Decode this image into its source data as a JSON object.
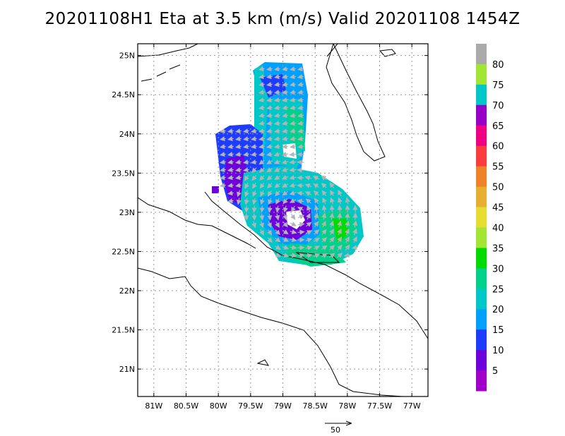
{
  "title": "20201108H1 Eta at 3.5 km (m/s) Valid 20201108 1454Z",
  "map": {
    "lon_range": [
      -81.25,
      -76.75
    ],
    "lat_range": [
      20.65,
      25.15
    ],
    "lon_ticks": [
      {
        "value": -81.0,
        "label": "81W"
      },
      {
        "value": -80.5,
        "label": "80.5W"
      },
      {
        "value": -80.0,
        "label": "80W"
      },
      {
        "value": -79.5,
        "label": "79.5W"
      },
      {
        "value": -79.0,
        "label": "79W"
      },
      {
        "value": -78.5,
        "label": "78.5W"
      },
      {
        "value": -78.0,
        "label": "78W"
      },
      {
        "value": -77.5,
        "label": "77.5W"
      },
      {
        "value": -77.0,
        "label": "77W"
      }
    ],
    "lat_ticks": [
      {
        "value": 25.0,
        "label": "25N"
      },
      {
        "value": 24.5,
        "label": "24.5N"
      },
      {
        "value": 24.0,
        "label": "24N"
      },
      {
        "value": 23.5,
        "label": "23.5N"
      },
      {
        "value": 23.0,
        "label": "23N"
      },
      {
        "value": 22.5,
        "label": "22.5N"
      },
      {
        "value": 22.0,
        "label": "22N"
      },
      {
        "value": 21.5,
        "label": "21.5N"
      },
      {
        "value": 21.0,
        "label": "21N"
      }
    ],
    "storm_center": {
      "lon": -78.75,
      "lat": 23.0
    },
    "grid": true
  },
  "colorbar": {
    "levels": [
      "5",
      "10",
      "15",
      "20",
      "25",
      "30",
      "35",
      "40",
      "45",
      "50",
      "55",
      "60",
      "65",
      "70",
      "75",
      "80"
    ],
    "colors": [
      "#a000c8",
      "#6e00dc",
      "#1e3cff",
      "#00a0ff",
      "#00c8c8",
      "#00d28c",
      "#00dc00",
      "#a0e632",
      "#e6dc32",
      "#e6af2d",
      "#f08228",
      "#fa3c3c",
      "#f00082",
      "#9600c8",
      "#00c8c8",
      "#a0e632",
      "#aaaaaa"
    ]
  },
  "vector_reference": {
    "label": "50",
    "value": 50
  }
}
